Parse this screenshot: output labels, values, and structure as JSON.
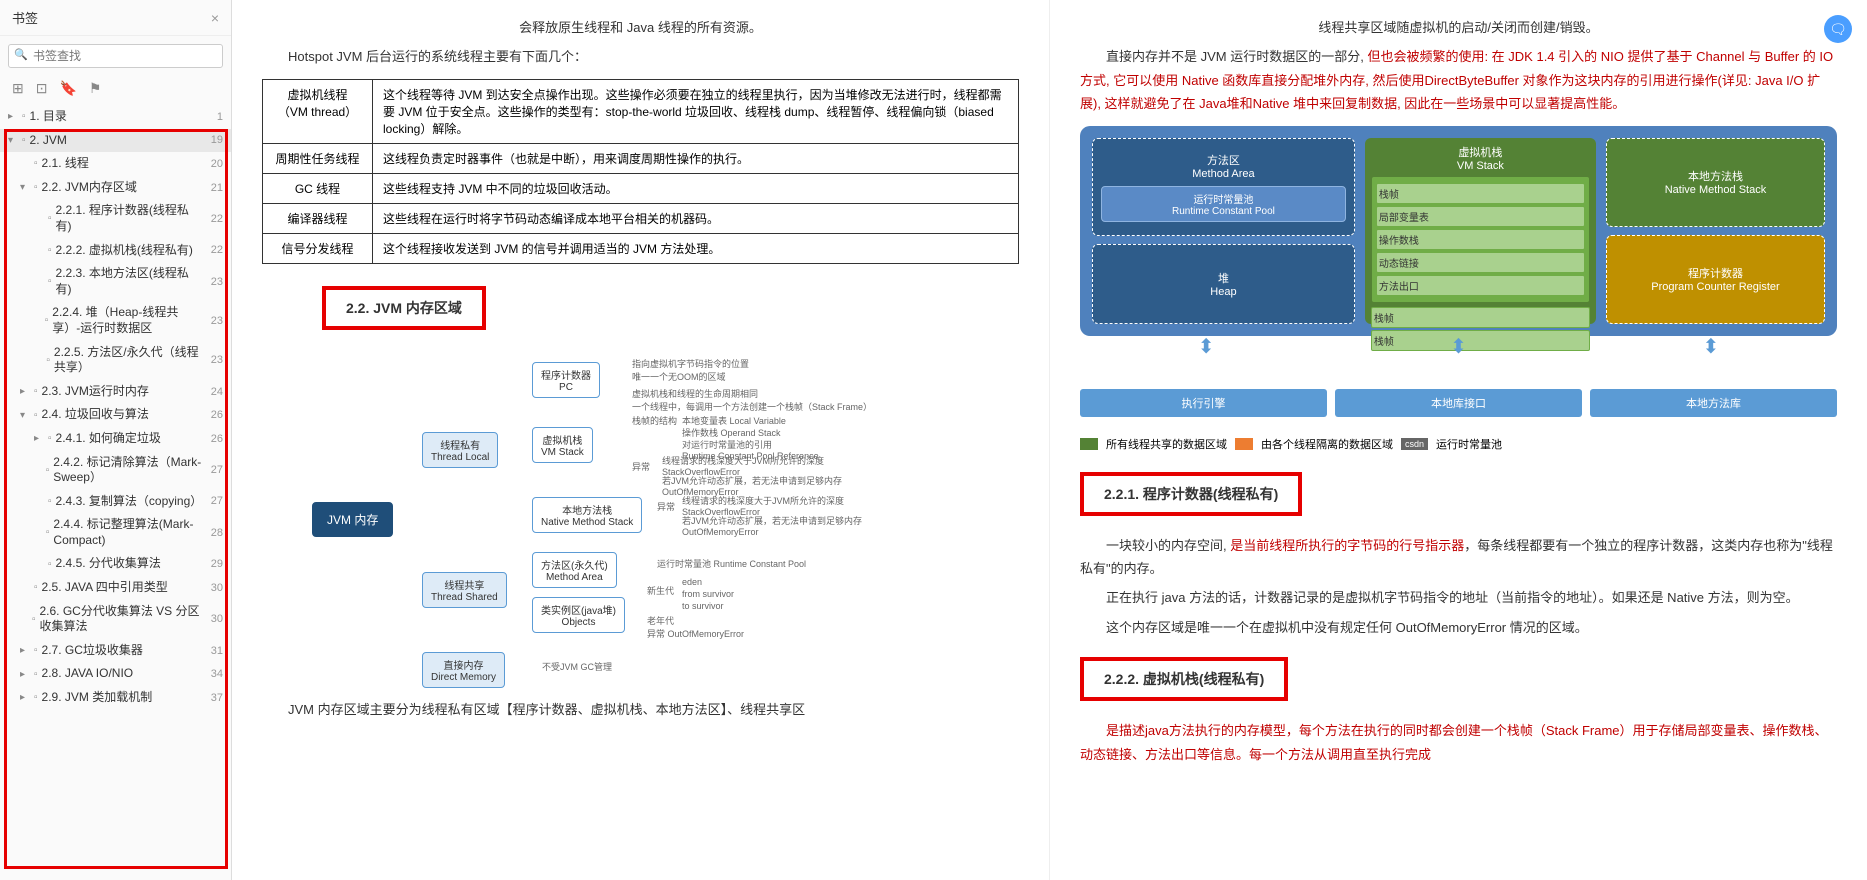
{
  "sidebar": {
    "title": "书签",
    "search_placeholder": "书签查找",
    "items": [
      {
        "indent": 0,
        "chev": "▸",
        "label": "1. 目录",
        "page": "1",
        "active": false
      },
      {
        "indent": 0,
        "chev": "▾",
        "label": "2. JVM",
        "page": "19",
        "active": true
      },
      {
        "indent": 1,
        "chev": "",
        "label": "2.1. 线程",
        "page": "20",
        "active": false
      },
      {
        "indent": 1,
        "chev": "▾",
        "label": "2.2. JVM内存区域",
        "page": "21",
        "active": false
      },
      {
        "indent": 2,
        "chev": "",
        "label": "2.2.1. 程序计数器(线程私有)",
        "page": "22",
        "active": false
      },
      {
        "indent": 2,
        "chev": "",
        "label": "2.2.2. 虚拟机栈(线程私有)",
        "page": "22",
        "active": false
      },
      {
        "indent": 2,
        "chev": "",
        "label": "2.2.3. 本地方法区(线程私有)",
        "page": "23",
        "active": false
      },
      {
        "indent": 2,
        "chev": "",
        "label": "2.2.4. 堆（Heap-线程共享）-运行时数据区",
        "page": "23",
        "active": false
      },
      {
        "indent": 2,
        "chev": "",
        "label": "2.2.5. 方法区/永久代（线程共享）",
        "page": "23",
        "active": false
      },
      {
        "indent": 1,
        "chev": "▸",
        "label": "2.3. JVM运行时内存",
        "page": "24",
        "active": false
      },
      {
        "indent": 1,
        "chev": "▾",
        "label": "2.4. 垃圾回收与算法",
        "page": "26",
        "active": false
      },
      {
        "indent": 2,
        "chev": "▸",
        "label": "2.4.1. 如何确定垃圾",
        "page": "26",
        "active": false
      },
      {
        "indent": 2,
        "chev": "",
        "label": "2.4.2. 标记清除算法（Mark-Sweep）",
        "page": "27",
        "active": false
      },
      {
        "indent": 2,
        "chev": "",
        "label": "2.4.3. 复制算法（copying）",
        "page": "27",
        "active": false
      },
      {
        "indent": 2,
        "chev": "",
        "label": "2.4.4. 标记整理算法(Mark-Compact)",
        "page": "28",
        "active": false
      },
      {
        "indent": 2,
        "chev": "",
        "label": "2.4.5. 分代收集算法",
        "page": "29",
        "active": false
      },
      {
        "indent": 1,
        "chev": "",
        "label": "2.5. JAVA 四中引用类型",
        "page": "30",
        "active": false
      },
      {
        "indent": 1,
        "chev": "",
        "label": "2.6. GC分代收集算法 VS 分区收集算法",
        "page": "30",
        "active": false
      },
      {
        "indent": 1,
        "chev": "▸",
        "label": "2.7. GC垃圾收集器",
        "page": "31",
        "active": false
      },
      {
        "indent": 1,
        "chev": "▸",
        "label": "2.8. JAVA IO/NIO",
        "page": "34",
        "active": false
      },
      {
        "indent": 1,
        "chev": "▸",
        "label": "2.9. JVM 类加载机制",
        "page": "37",
        "active": false
      }
    ]
  },
  "page1": {
    "intro_red": "会释放原生线程和 Java 线程的所有资源。",
    "para1": "Hotspot JVM 后台运行的系统线程主要有下面几个：",
    "table": [
      [
        "虚拟机线程（VM thread）",
        "这个线程等待 JVM 到达安全点操作出现。这些操作必须要在独立的线程里执行，因为当堆修改无法进行时，线程都需要 JVM 位于安全点。这些操作的类型有：stop-the-world 垃圾回收、线程栈 dump、线程暂停、线程偏向锁（biased locking）解除。"
      ],
      [
        "周期性任务线程",
        "这线程负责定时器事件（也就是中断），用来调度周期性操作的执行。"
      ],
      [
        "GC 线程",
        "这些线程支持 JVM 中不同的垃圾回收活动。"
      ],
      [
        "编译器线程",
        "这些线程在运行时将字节码动态编译成本地平台相关的机器码。"
      ],
      [
        "信号分发线程",
        "这个线程接收发送到 JVM 的信号并调用适当的 JVM 方法处理。"
      ]
    ],
    "section_22": "2.2. JVM 内存区域",
    "mindmap": {
      "root": "JVM 内存",
      "thread_local": "线程私有\nThread Local",
      "thread_shared": "线程共享\nThread Shared",
      "direct": "直接内存\nDirect Memory",
      "pc": "程序计数器\nPC",
      "vmstack": "虚拟机栈\nVM Stack",
      "native_stack": "本地方法栈\nNative Method Stack",
      "method_area": "方法区(永久代)\nMethod Area",
      "objects": "类实例区(java堆)\nObjects",
      "direct_note": "不受JVM GC管理",
      "pc_note1": "指向虚拟机字节码指令的位置",
      "pc_note2": "唯一一个无OOM的区域",
      "vm_note1": "虚拟机栈和线程的生命周期相同",
      "vm_note2": "一个线程中，每调用一个方法创建一个栈帧（Stack Frame）",
      "vm_note3": "栈帧的结构",
      "vm_note3a": "本地变量表 Local Variable",
      "vm_note3b": "操作数栈 Operand Stack",
      "vm_note3c": "对运行时常量池的引用\nRuntime Constant Pool Reference",
      "vm_note4": "异常",
      "vm_note4a": "线程请求的栈深度大于JVM所允许的深度\nStackOverflowError",
      "vm_note4b": "若JVM允许动态扩展，若无法申请到足够内存\nOutOfMemoryError",
      "native_note": "异常",
      "native_note_a": "线程请求的栈深度大于JVM所允许的深度\nStackOverflowError",
      "native_note_b": "若JVM允许动态扩展，若无法申请到足够内存\nOutOfMemoryError",
      "ma_note": "运行时常量池 Runtime Constant Pool",
      "obj_note1": "新生代",
      "obj_note1a": "eden",
      "obj_note1b": "from survivor",
      "obj_note1c": "to survivor",
      "obj_note2": "老年代",
      "obj_note3": "异常 OutOfMemoryError"
    },
    "bottom_para": "JVM 内存区域主要分为线程私有区域【程序计数器、虚拟机栈、本地方法区】、线程共享区"
  },
  "page2": {
    "top_red": "线程共享区域随虚拟机的启动/关闭而创建/销毁。",
    "para1a": "直接内存并不是 JVM 运行时数据区的一部分,",
    "para1b": " 但也会被频繁的使用: 在 JDK 1.4 引入的 NIO 提供了基于 Channel 与 Buffer 的 IO 方式, 它可以使用 Native 函数库直接分配堆外内存, 然后使用DirectByteBuffer 对象作为这块内存的引用进行操作(详见: Java I/O 扩展), 这样就避免了在 Java堆和Native 堆中来回复制数据, 因此在一些场景中可以显著提高性能。",
    "diagram": {
      "method_area": "方法区\nMethod Area",
      "rt_pool": "运行时常量池\nRuntime Constant Pool",
      "heap": "堆\nHeap",
      "vm_stack": "虚拟机栈\nVM Stack",
      "frame": "栈帧",
      "local_var": "局部变量表",
      "op_stack": "操作数栈",
      "dyn_link": "动态链接",
      "method_exit": "方法出口",
      "native_stack": "本地方法栈\nNative Method Stack",
      "pc": "程序计数器\nProgram Counter Register",
      "exec_engine": "执行引擎",
      "native_iface": "本地库接口",
      "native_lib": "本地方法库"
    },
    "legend": {
      "shared": "所有线程共享的数据区域",
      "private": "由各个线程隔离的数据区域",
      "csdn": "csdn",
      "rt": "运行时常量池"
    },
    "section_221": "2.2.1. 程序计数器(线程私有)",
    "para_221a": "一块较小的内存空间, ",
    "para_221b": "是当前线程所执行的字节码的行号指示器",
    "para_221c": "，每条线程都要有一个独立的程序计数器，这类内存也称为\"线程私有\"的内存。",
    "para_221d": "正在执行 java 方法的话，计数器记录的是虚拟机字节码指令的地址（当前指令的地址）。如果还是 Native 方法，则为空。",
    "para_221e": "这个内存区域是唯一一个在虚拟机中没有规定任何 OutOfMemoryError 情况的区域。",
    "section_222": "2.2.2. 虚拟机栈(线程私有)",
    "para_222a": "是描述java方法执行的内存模型，每个方法在执行的同时都会创建一个栈帧（Stack Frame）用于存储局部变量表、操作数栈、动态链接、方法出口等信息。",
    "para_222b": "每一个方法从调用直至执行完成"
  }
}
